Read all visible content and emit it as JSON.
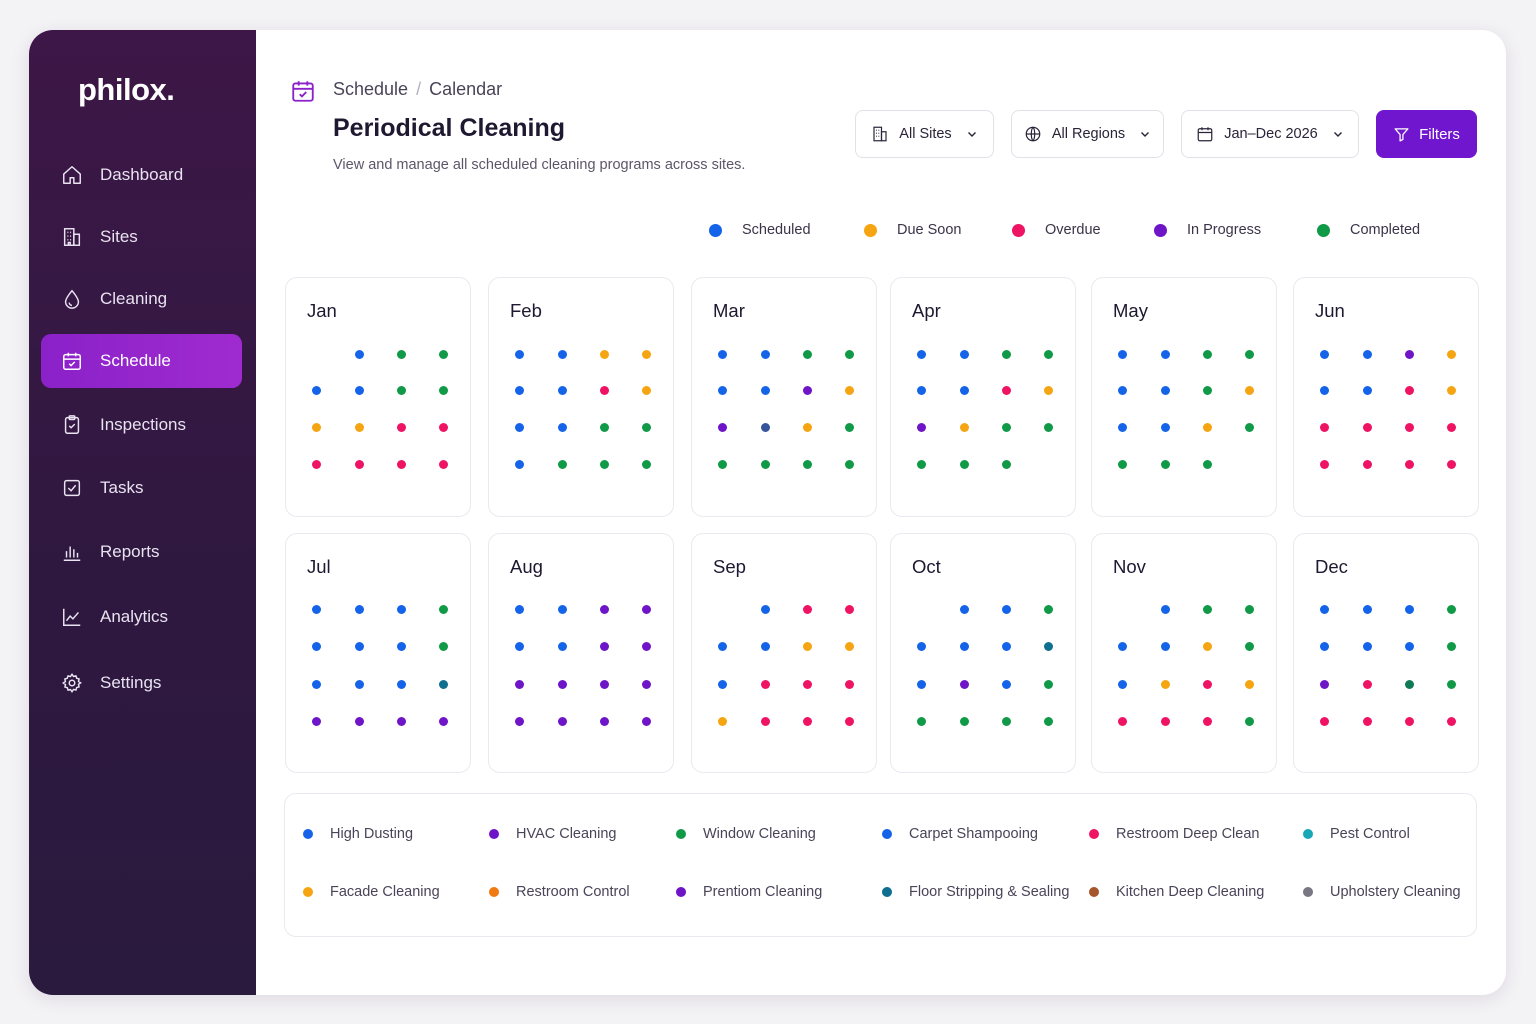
{
  "app": {
    "logo": "philox."
  },
  "sidebar": {
    "items": [
      {
        "label": "Dashboard",
        "icon": "home-icon",
        "active": false
      },
      {
        "label": "Sites",
        "icon": "building-icon",
        "active": false
      },
      {
        "label": "Cleaning",
        "icon": "droplet-icon",
        "active": false
      },
      {
        "label": "Schedule",
        "icon": "calendar-icon",
        "active": true
      },
      {
        "label": "Inspections",
        "icon": "clipboard-check-icon",
        "active": false
      },
      {
        "label": "Tasks",
        "icon": "checkbox-icon",
        "active": false
      },
      {
        "label": "Reports",
        "icon": "bar-chart-icon",
        "active": false
      },
      {
        "label": "Analytics",
        "icon": "line-chart-icon",
        "active": false
      },
      {
        "label": "Settings",
        "icon": "gear-icon",
        "active": false
      }
    ]
  },
  "header": {
    "breadcrumb": [
      "Schedule",
      "Calendar"
    ],
    "breadcrumb_separator": "/",
    "title": "Periodical Cleaning",
    "subtitle": "View and manage all scheduled cleaning programs across sites."
  },
  "controls": {
    "sites": "All Sites",
    "regions": "All Regions",
    "date_range": "Jan–Dec 2026",
    "filters": "Filters"
  },
  "colors": {
    "accent": "#7116cf",
    "sidebar_bg": "#2f1840",
    "blue": "#1463e8",
    "green": "#109a48",
    "orange": "#f5a512",
    "red": "#ee1463",
    "purple": "#6e15c8",
    "navy": "#35549a",
    "teal": "#0f6f8f",
    "darkgreen": "#0f7a55",
    "cyan": "#17a7b5",
    "darkorange": "#f07a12",
    "brown": "#a5562b",
    "gray": "#7a7784"
  },
  "status_legend": [
    {
      "label": "Scheduled",
      "color": "#1463e8"
    },
    {
      "label": "Due Soon",
      "color": "#f5a512"
    },
    {
      "label": "Overdue",
      "color": "#ee1463"
    },
    {
      "label": "In Progress",
      "color": "#6e15c8"
    },
    {
      "label": "Completed",
      "color": "#109a48"
    }
  ],
  "months": [
    {
      "name": "Jan",
      "dots": [
        [
          null,
          "blue",
          "green",
          "green"
        ],
        [
          "blue",
          "blue",
          "green",
          "green"
        ],
        [
          "orange",
          "orange",
          "red",
          "red"
        ],
        [
          "red",
          "red",
          "red",
          "red"
        ]
      ]
    },
    {
      "name": "Feb",
      "dots": [
        [
          "blue",
          "blue",
          "orange",
          "orange"
        ],
        [
          "blue",
          "blue",
          "red",
          "orange"
        ],
        [
          "blue",
          "blue",
          "green",
          "green"
        ],
        [
          "blue",
          "green",
          "green",
          "green"
        ]
      ]
    },
    {
      "name": "Mar",
      "dots": [
        [
          "blue",
          "blue",
          "green",
          "green"
        ],
        [
          "blue",
          "blue",
          "purple",
          "orange"
        ],
        [
          "purple",
          "navy",
          "orange",
          "green"
        ],
        [
          "green",
          "green",
          "green",
          "green"
        ]
      ]
    },
    {
      "name": "Apr",
      "dots": [
        [
          "blue",
          "blue",
          "green",
          "green"
        ],
        [
          "blue",
          "blue",
          "red",
          "orange"
        ],
        [
          "purple",
          "orange",
          "green",
          "green"
        ],
        [
          "green",
          "green",
          "green",
          null
        ]
      ]
    },
    {
      "name": "May",
      "dots": [
        [
          "blue",
          "blue",
          "green",
          "green"
        ],
        [
          "blue",
          "blue",
          "green",
          "orange"
        ],
        [
          "blue",
          "blue",
          "orange",
          "green"
        ],
        [
          "green",
          "green",
          "green",
          null
        ]
      ]
    },
    {
      "name": "Jun",
      "dots": [
        [
          "blue",
          "blue",
          "purple",
          "orange"
        ],
        [
          "blue",
          "blue",
          "red",
          "orange"
        ],
        [
          "red",
          "red",
          "red",
          "red"
        ],
        [
          "red",
          "red",
          "red",
          "red"
        ]
      ]
    },
    {
      "name": "Jul",
      "dots": [
        [
          "blue",
          "blue",
          "blue",
          "green"
        ],
        [
          "blue",
          "blue",
          "blue",
          "green"
        ],
        [
          "blue",
          "blue",
          "blue",
          "teal"
        ],
        [
          "purple",
          "purple",
          "purple",
          "purple"
        ]
      ]
    },
    {
      "name": "Aug",
      "dots": [
        [
          "blue",
          "blue",
          "purple",
          "purple"
        ],
        [
          "blue",
          "blue",
          "purple",
          "purple"
        ],
        [
          "purple",
          "purple",
          "purple",
          "purple"
        ],
        [
          "purple",
          "purple",
          "purple",
          "purple"
        ]
      ]
    },
    {
      "name": "Sep",
      "dots": [
        [
          null,
          "blue",
          "red",
          "red"
        ],
        [
          "blue",
          "blue",
          "orange",
          "orange"
        ],
        [
          "blue",
          "red",
          "red",
          "red"
        ],
        [
          "orange",
          "red",
          "red",
          "red"
        ]
      ]
    },
    {
      "name": "Oct",
      "dots": [
        [
          null,
          "blue",
          "blue",
          "green"
        ],
        [
          "blue",
          "blue",
          "blue",
          "teal"
        ],
        [
          "blue",
          "purple",
          "blue",
          "green"
        ],
        [
          "green",
          "green",
          "green",
          "green"
        ]
      ]
    },
    {
      "name": "Nov",
      "dots": [
        [
          null,
          "blue",
          "green",
          "green"
        ],
        [
          "blue",
          "blue",
          "orange",
          "green"
        ],
        [
          "blue",
          "orange",
          "red",
          "orange"
        ],
        [
          "red",
          "red",
          "red",
          "green"
        ]
      ]
    },
    {
      "name": "Dec",
      "dots": [
        [
          "blue",
          "blue",
          "blue",
          "green"
        ],
        [
          "blue",
          "blue",
          "blue",
          "green"
        ],
        [
          "purple",
          "red",
          "darkgreen",
          "green"
        ],
        [
          "red",
          "red",
          "red",
          "red"
        ]
      ]
    }
  ],
  "cleaning_types": [
    {
      "label": "High Dusting",
      "color": "#1463e8"
    },
    {
      "label": "HVAC Cleaning",
      "color": "#6e15c8"
    },
    {
      "label": "Window Cleaning",
      "color": "#109a48"
    },
    {
      "label": "Carpet Shampooing",
      "color": "#1463e8"
    },
    {
      "label": "Restroom Deep Clean",
      "color": "#ee1463"
    },
    {
      "label": "Pest Control",
      "color": "#17a7b5"
    },
    {
      "label": "Facade Cleaning",
      "color": "#f5a512"
    },
    {
      "label": "Restroom Control",
      "color": "#f07a12"
    },
    {
      "label": "Prentiom Cleaning",
      "color": "#6e15c8"
    },
    {
      "label": "Floor Stripping & Sealing",
      "color": "#0f6f8f"
    },
    {
      "label": "Kitchen Deep Cleaning",
      "color": "#a5562b"
    },
    {
      "label": "Upholstery Cleaning",
      "color": "#7a7784"
    }
  ]
}
